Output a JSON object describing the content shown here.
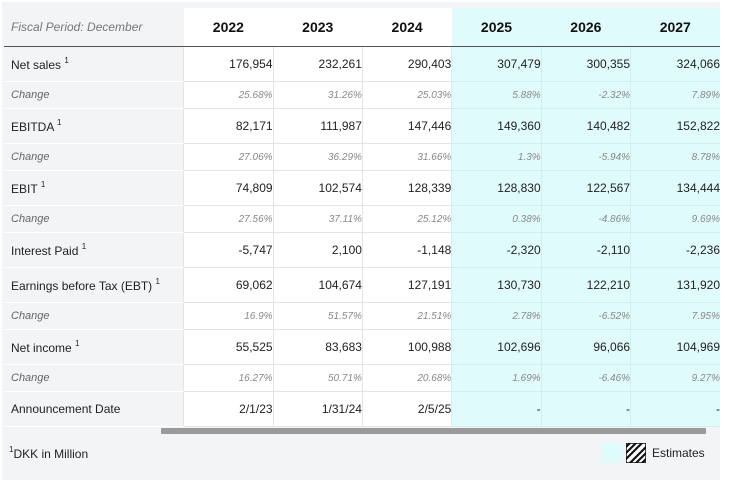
{
  "table": {
    "period_label": "Fiscal Period: December",
    "years": [
      "2022",
      "2023",
      "2024",
      "2025",
      "2026",
      "2027"
    ],
    "estimate_start_index": 3,
    "rows": [
      {
        "label": "Net sales",
        "footnote": "1",
        "kind": "main",
        "values": [
          "176,954",
          "232,261",
          "290,403",
          "307,479",
          "300,355",
          "324,066"
        ]
      },
      {
        "label": "Change",
        "kind": "change",
        "values": [
          "25.68%",
          "31.26%",
          "25.03%",
          "5.88%",
          "-2.32%",
          "7.89%"
        ]
      },
      {
        "label": "EBITDA",
        "footnote": "1",
        "kind": "main",
        "values": [
          "82,171",
          "111,987",
          "147,446",
          "149,360",
          "140,482",
          "152,822"
        ]
      },
      {
        "label": "Change",
        "kind": "change",
        "values": [
          "27.06%",
          "36.29%",
          "31.66%",
          "1.3%",
          "-5.94%",
          "8.78%"
        ]
      },
      {
        "label": "EBIT",
        "footnote": "1",
        "kind": "main",
        "values": [
          "74,809",
          "102,574",
          "128,339",
          "128,830",
          "122,567",
          "134,444"
        ]
      },
      {
        "label": "Change",
        "kind": "change",
        "values": [
          "27.56%",
          "37.11%",
          "25.12%",
          "0.38%",
          "-4.86%",
          "9.69%"
        ]
      },
      {
        "label": "Interest Paid",
        "footnote": "1",
        "kind": "main",
        "values": [
          "-5,747",
          "2,100",
          "-1,148",
          "-2,320",
          "-2,110",
          "-2,236"
        ]
      },
      {
        "label": "Earnings before Tax (EBT)",
        "footnote": "1",
        "kind": "main",
        "values": [
          "69,062",
          "104,674",
          "127,191",
          "130,730",
          "122,210",
          "131,920"
        ]
      },
      {
        "label": "Change",
        "kind": "change",
        "values": [
          "16.9%",
          "51.57%",
          "21.51%",
          "2.78%",
          "-6.52%",
          "7.95%"
        ]
      },
      {
        "label": "Net income",
        "footnote": "1",
        "kind": "main",
        "values": [
          "55,525",
          "83,683",
          "100,988",
          "102,696",
          "96,066",
          "104,969"
        ]
      },
      {
        "label": "Change",
        "kind": "change",
        "values": [
          "16.27%",
          "50.71%",
          "20.68%",
          "1.69%",
          "-6.46%",
          "9.27%"
        ]
      },
      {
        "label": "Announcement Date",
        "kind": "main",
        "values": [
          "2/1/23",
          "1/31/24",
          "2/5/25",
          "-",
          "-",
          "-"
        ]
      }
    ]
  },
  "footer": {
    "footnote_mark": "1",
    "footnote_text": "DKK in Million",
    "legend_label": "Estimates"
  },
  "colors": {
    "estimate_bg": "#e0fbfb",
    "label_bg": "#f3f4f6"
  },
  "icons": [
    "hatch-pattern-icon"
  ]
}
